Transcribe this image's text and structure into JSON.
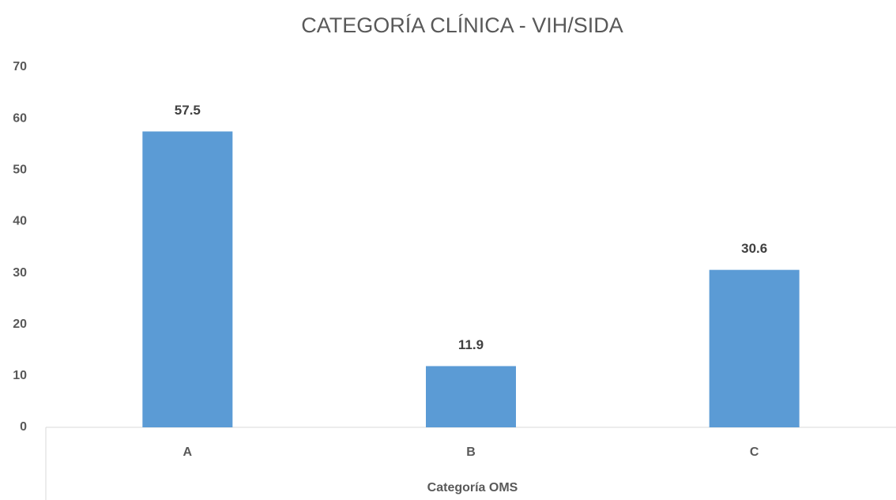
{
  "chart_data": {
    "type": "bar",
    "title": "CATEGORÍA  CLÍNICA - VIH/SIDA",
    "x_label": "Categoría OMS",
    "categories": [
      "A",
      "B",
      "C"
    ],
    "values": [
      57.5,
      11.9,
      30.6
    ],
    "color": "#5b9bd5",
    "ylim": [
      0,
      70
    ],
    "yticks": [
      0,
      10,
      20,
      30,
      40,
      50,
      60,
      70
    ],
    "grid": false
  }
}
